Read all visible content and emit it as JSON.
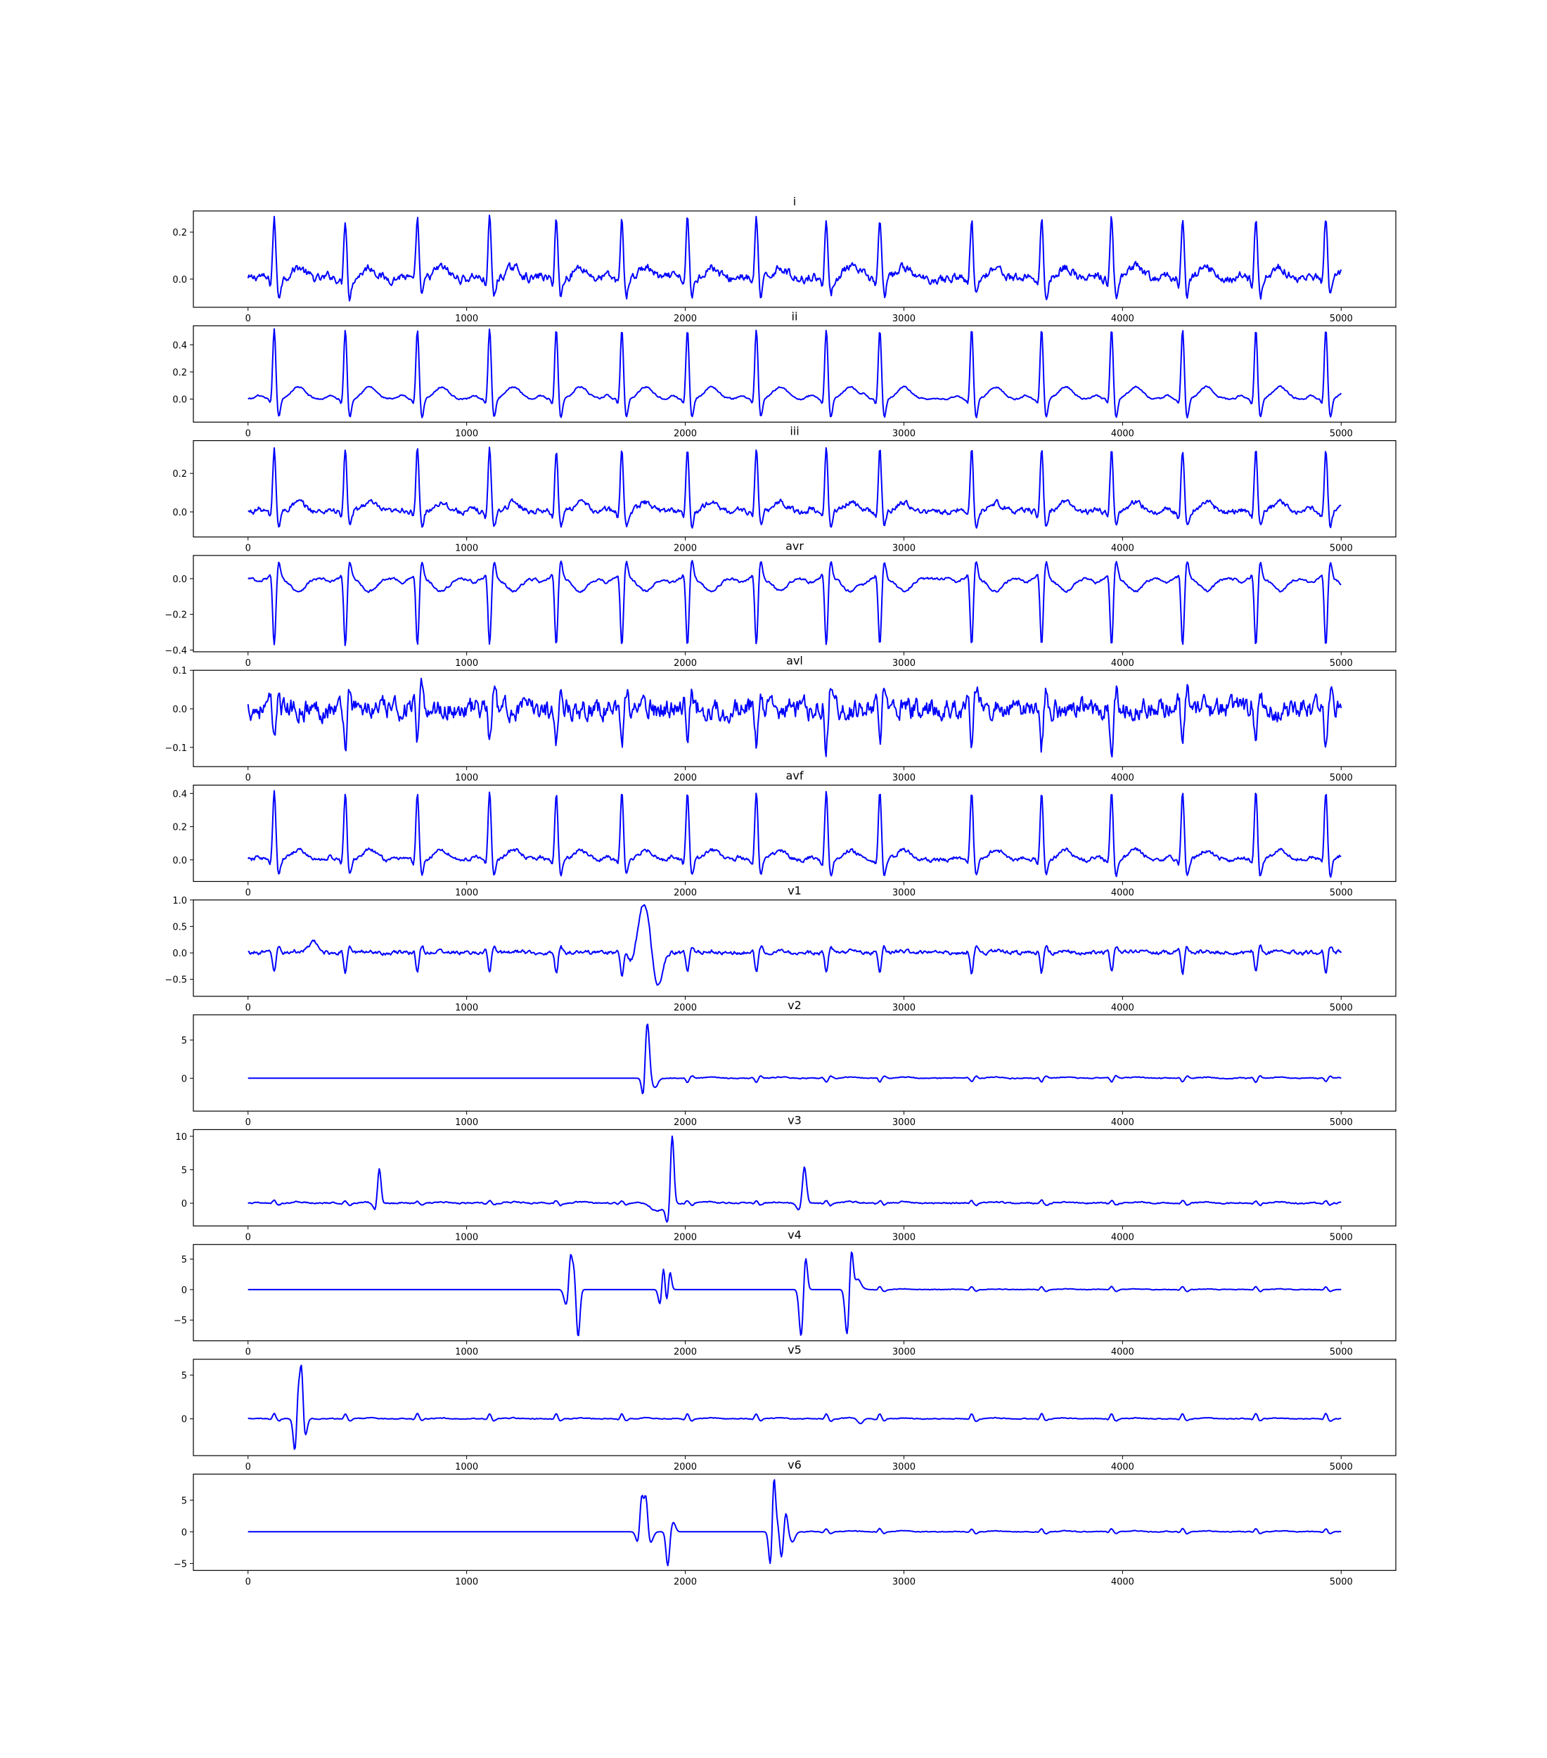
{
  "chart_data": {
    "type": "line",
    "x": {
      "min": 0,
      "max": 5000,
      "ticks": [
        0,
        1000,
        2000,
        3000,
        4000,
        5000
      ],
      "xlim": [
        -250,
        5250
      ]
    },
    "line_color": "#0000ff",
    "r_peaks": [
      120,
      445,
      775,
      1105,
      1410,
      1710,
      2010,
      2325,
      2645,
      2890,
      3310,
      3630,
      3950,
      4275,
      4610,
      4930
    ],
    "panels": [
      {
        "title": "i",
        "ylim": [
          -0.12,
          0.29
        ],
        "yticks": [
          0.0,
          0.2
        ],
        "tick_labels": [
          "0.0",
          "0.2"
        ],
        "kind": "ecg",
        "r": 0.26,
        "q": -0.03,
        "s": -0.08,
        "t": 0.05,
        "noise": 0.015
      },
      {
        "title": "ii",
        "ylim": [
          -0.17,
          0.54
        ],
        "yticks": [
          0.0,
          0.2,
          0.4
        ],
        "tick_labels": [
          "0.0",
          "0.2",
          "0.4"
        ],
        "kind": "ecg",
        "r": 0.52,
        "q": -0.05,
        "s": -0.14,
        "t": 0.09,
        "noise": 0.005
      },
      {
        "title": "iii",
        "ylim": [
          -0.13,
          0.37
        ],
        "yticks": [
          0.0,
          0.2
        ],
        "tick_labels": [
          "0.0",
          "0.2"
        ],
        "kind": "ecg",
        "r": 0.33,
        "q": -0.04,
        "s": -0.08,
        "t": 0.05,
        "noise": 0.012
      },
      {
        "title": "avr",
        "ylim": [
          -0.41,
          0.13
        ],
        "yticks": [
          -0.4,
          -0.2,
          0.0
        ],
        "tick_labels": [
          "−0.4",
          "−0.2",
          "0.0"
        ],
        "kind": "ecg",
        "r": -0.38,
        "q": 0.03,
        "s": 0.1,
        "t": -0.07,
        "noise": 0.006
      },
      {
        "title": "avl",
        "ylim": [
          -0.15,
          0.1
        ],
        "yticks": [
          -0.1,
          0.0,
          0.1
        ],
        "tick_labels": [
          "−0.1",
          "0.0",
          "0.1"
        ],
        "kind": "ecg",
        "r": -0.1,
        "q": 0.02,
        "s": 0.05,
        "t": 0.0,
        "noise": 0.022
      },
      {
        "title": "avf",
        "ylim": [
          -0.13,
          0.45
        ],
        "yticks": [
          0.0,
          0.2,
          0.4
        ],
        "tick_labels": [
          "0.0",
          "0.2",
          "0.4"
        ],
        "kind": "ecg",
        "r": 0.41,
        "q": -0.04,
        "s": -0.1,
        "t": 0.06,
        "noise": 0.01
      },
      {
        "title": "v1",
        "ylim": [
          -0.82,
          1.0
        ],
        "yticks": [
          -0.5,
          0.0,
          0.5,
          1.0
        ],
        "tick_labels": [
          "−0.5",
          "0.0",
          "0.5",
          "1.0"
        ],
        "kind": "ecg",
        "r": -0.38,
        "q": 0.05,
        "s": 0.12,
        "t": 0.03,
        "noise": 0.03,
        "artifacts": [
          {
            "x": 1810,
            "a": 0.95,
            "w": 30
          },
          {
            "x": 1870,
            "a": -0.75,
            "w": 22
          },
          {
            "x": 1760,
            "a": -0.3,
            "w": 25
          },
          {
            "x": 300,
            "a": 0.2,
            "w": 20
          }
        ]
      },
      {
        "title": "v2",
        "ylim": [
          -4.3,
          8.3
        ],
        "yticks": [
          0,
          5
        ],
        "tick_labels": [
          "0",
          "5"
        ],
        "kind": "flat_then_ecg",
        "start": 1830,
        "r": -0.5,
        "q": 0.1,
        "s": 0.3,
        "t": 0.15,
        "noise": 0.05,
        "artifacts": [
          {
            "x": 1825,
            "a": 7.8,
            "w": 10
          },
          {
            "x": 1810,
            "a": -3.8,
            "w": 8
          },
          {
            "x": 1860,
            "a": -1.3,
            "w": 14
          }
        ]
      },
      {
        "title": "v3",
        "ylim": [
          -3.4,
          11.0
        ],
        "yticks": [
          0,
          5,
          10
        ],
        "tick_labels": [
          "0",
          "5",
          "10"
        ],
        "kind": "ecg",
        "r": 0.4,
        "q": -0.1,
        "s": -0.3,
        "t": 0.2,
        "noise": 0.08,
        "artifacts": [
          {
            "x": 600,
            "a": 5.7,
            "w": 8
          },
          {
            "x": 585,
            "a": -1.4,
            "w": 12
          },
          {
            "x": 1940,
            "a": 10.5,
            "w": 8
          },
          {
            "x": 1920,
            "a": -2.8,
            "w": 10
          },
          {
            "x": 1870,
            "a": -1.2,
            "w": 30
          },
          {
            "x": 2545,
            "a": 5.5,
            "w": 9
          },
          {
            "x": 2520,
            "a": -1.0,
            "w": 12
          }
        ]
      },
      {
        "title": "v4",
        "ylim": [
          -8.4,
          7.4
        ],
        "yticks": [
          -5,
          0,
          5
        ],
        "tick_labels": [
          "−5",
          "0",
          "5"
        ],
        "kind": "flat_then_ecg",
        "start": 2780,
        "r": 0.5,
        "q": -0.1,
        "s": -0.3,
        "t": 0.1,
        "noise": 0.04,
        "artifacts": [
          {
            "x": 1455,
            "a": -2.5,
            "w": 10
          },
          {
            "x": 1475,
            "a": 5.6,
            "w": 7
          },
          {
            "x": 1490,
            "a": 3.5,
            "w": 7
          },
          {
            "x": 1510,
            "a": -7.8,
            "w": 8
          },
          {
            "x": 1885,
            "a": -2.6,
            "w": 8
          },
          {
            "x": 1900,
            "a": 4.0,
            "w": 7
          },
          {
            "x": 1915,
            "a": -2.2,
            "w": 7
          },
          {
            "x": 1930,
            "a": 3.0,
            "w": 7
          },
          {
            "x": 2530,
            "a": -7.8,
            "w": 9
          },
          {
            "x": 2550,
            "a": 5.6,
            "w": 8
          },
          {
            "x": 2740,
            "a": -7.5,
            "w": 9
          },
          {
            "x": 2760,
            "a": 6.6,
            "w": 8
          },
          {
            "x": 2790,
            "a": 1.6,
            "w": 14
          }
        ]
      },
      {
        "title": "v5",
        "ylim": [
          -4.2,
          6.8
        ],
        "yticks": [
          0,
          5
        ],
        "tick_labels": [
          "0",
          "5"
        ],
        "kind": "ecg",
        "r": 0.6,
        "q": -0.1,
        "s": -0.25,
        "t": 0.1,
        "noise": 0.04,
        "artifacts": [
          {
            "x": 215,
            "a": -3.9,
            "w": 8
          },
          {
            "x": 230,
            "a": 3.6,
            "w": 7
          },
          {
            "x": 245,
            "a": 6.2,
            "w": 7
          },
          {
            "x": 260,
            "a": -2.2,
            "w": 10
          },
          {
            "x": 2800,
            "a": -0.6,
            "w": 12
          }
        ]
      },
      {
        "title": "v6",
        "ylim": [
          -6.1,
          9.1
        ],
        "yticks": [
          -5,
          0,
          5
        ],
        "tick_labels": [
          "−5",
          "0",
          "5"
        ],
        "kind": "flat_then_ecg",
        "start": 2540,
        "r": 0.5,
        "q": -0.1,
        "s": -0.3,
        "t": 0.15,
        "noise": 0.05,
        "artifacts": [
          {
            "x": 1785,
            "a": -2.0,
            "w": 10
          },
          {
            "x": 1800,
            "a": 6.0,
            "w": 8
          },
          {
            "x": 1820,
            "a": 5.8,
            "w": 8
          },
          {
            "x": 1840,
            "a": -1.8,
            "w": 12
          },
          {
            "x": 1920,
            "a": -5.4,
            "w": 8
          },
          {
            "x": 1945,
            "a": 1.5,
            "w": 10
          },
          {
            "x": 2390,
            "a": -5.6,
            "w": 8
          },
          {
            "x": 2405,
            "a": 8.8,
            "w": 7
          },
          {
            "x": 2420,
            "a": 1.5,
            "w": 9
          },
          {
            "x": 2440,
            "a": -4.2,
            "w": 8
          },
          {
            "x": 2460,
            "a": 3.1,
            "w": 8
          },
          {
            "x": 2490,
            "a": -1.6,
            "w": 12
          }
        ]
      }
    ]
  }
}
